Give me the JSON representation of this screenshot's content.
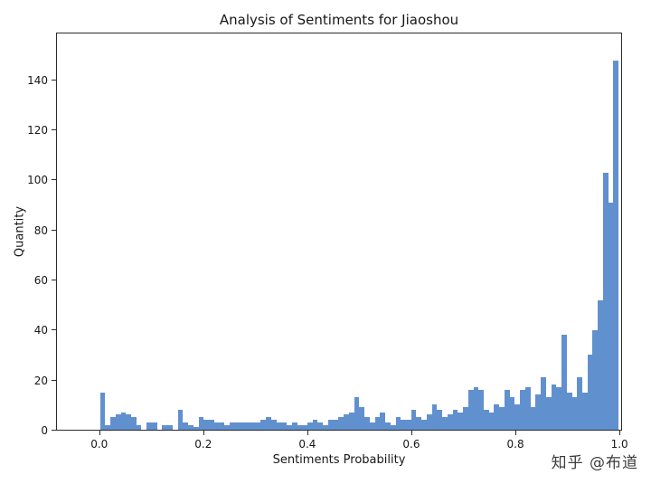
{
  "chart_data": {
    "type": "bar",
    "subtype": "histogram",
    "title": "Analysis of Sentiments for Jiaoshou",
    "xlabel": "Sentiments Probability",
    "ylabel": "Quantity",
    "bar_color": "#6190cf",
    "grid": false,
    "bin_start": 0.0,
    "bin_width": 0.01,
    "counts": [
      15,
      2,
      5,
      6,
      7,
      6,
      5,
      2,
      0,
      3,
      3,
      0,
      2,
      2,
      0,
      8,
      3,
      2,
      1,
      5,
      4,
      4,
      3,
      3,
      2,
      3,
      3,
      3,
      3,
      3,
      3,
      4,
      5,
      4,
      3,
      3,
      2,
      3,
      2,
      2,
      3,
      4,
      3,
      2,
      4,
      4,
      5,
      6,
      7,
      13,
      9,
      5,
      3,
      5,
      7,
      3,
      2,
      5,
      4,
      4,
      8,
      5,
      4,
      6,
      10,
      8,
      5,
      6,
      8,
      7,
      9,
      16,
      17,
      16,
      8,
      7,
      10,
      9,
      16,
      13,
      10,
      16,
      17,
      9,
      14,
      21,
      13,
      18,
      17,
      38,
      15,
      13,
      21,
      15,
      30,
      40,
      52,
      103,
      91,
      148
    ],
    "xlim": [
      -0.083,
      1.005
    ],
    "ylim": [
      0,
      159
    ],
    "x_ticks": [
      {
        "value": 0.0,
        "label": "0.0"
      },
      {
        "value": 0.2,
        "label": "0.2"
      },
      {
        "value": 0.4,
        "label": "0.4"
      },
      {
        "value": 0.6,
        "label": "0.6"
      },
      {
        "value": 0.8,
        "label": "0.8"
      },
      {
        "value": 1.0,
        "label": "1.0"
      }
    ],
    "y_ticks": [
      {
        "value": 0,
        "label": "0"
      },
      {
        "value": 20,
        "label": "20"
      },
      {
        "value": 40,
        "label": "40"
      },
      {
        "value": 60,
        "label": "60"
      },
      {
        "value": 80,
        "label": "80"
      },
      {
        "value": 100,
        "label": "100"
      },
      {
        "value": 120,
        "label": "120"
      },
      {
        "value": 140,
        "label": "140"
      }
    ]
  },
  "watermark": {
    "text": "知乎 @布道",
    "color": "#3d3d3d"
  }
}
